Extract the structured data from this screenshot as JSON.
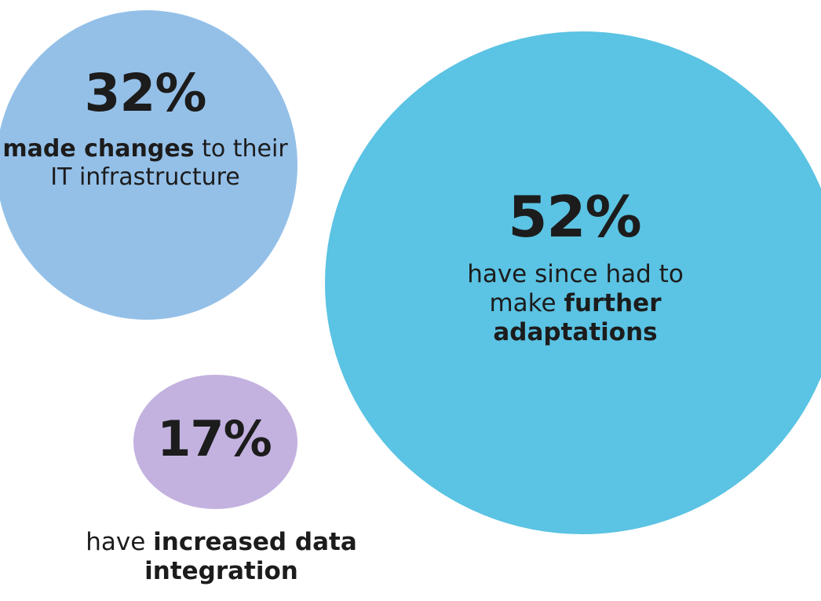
{
  "chart_data": {
    "type": "bubble",
    "items": [
      {
        "value": 32,
        "label": "32%",
        "color": "#94c0e8",
        "caption": [
          "made changes",
          " to their IT infrastructure"
        ]
      },
      {
        "value": 52,
        "label": "52%",
        "color": "#5bc3e3",
        "caption": [
          "have since had to make ",
          "further adaptations"
        ]
      },
      {
        "value": 17,
        "label": "17%",
        "color": "#c3b2e0",
        "caption": [
          "have ",
          "increased data integration"
        ]
      }
    ]
  }
}
